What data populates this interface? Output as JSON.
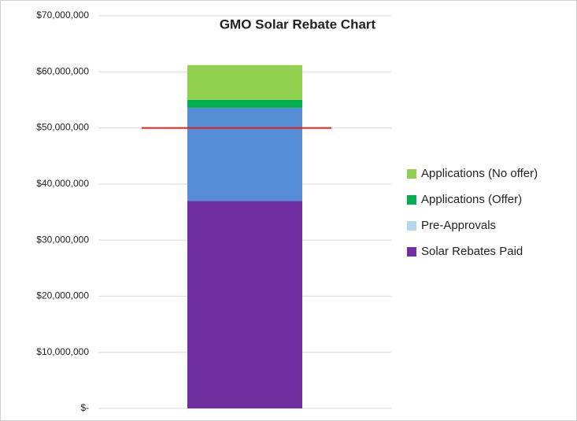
{
  "chart_data": {
    "type": "stacked_bar",
    "title": "GMO Solar Rebate Chart",
    "categories": [
      null
    ],
    "series": [
      {
        "name": "Solar Rebates Paid",
        "color": "#7030a0",
        "values": [
          37000000
        ]
      },
      {
        "name": "Pre-Approvals",
        "color": "#558ed5",
        "legend_color": "#b4d8ec",
        "values": [
          16600000
        ]
      },
      {
        "name": "Applications (Offer)",
        "color": "#00b050",
        "values": [
          1400000
        ]
      },
      {
        "name": "Applications (No offer)",
        "color": "#92d050",
        "values": [
          6200000
        ]
      }
    ],
    "reference_line": {
      "value": 50000000,
      "color": "#e0201b"
    },
    "ylim": [
      0,
      70000000
    ],
    "yticks": [
      {
        "value": 0,
        "label": "$-"
      },
      {
        "value": 10000000,
        "label": "$10,000,000"
      },
      {
        "value": 20000000,
        "label": "$20,000,000"
      },
      {
        "value": 30000000,
        "label": "$30,000,000"
      },
      {
        "value": 40000000,
        "label": "$40,000,000"
      },
      {
        "value": 50000000,
        "label": "$50,000,000"
      },
      {
        "value": 60000000,
        "label": "$60,000,000"
      },
      {
        "value": 70000000,
        "label": "$70,000,000"
      }
    ],
    "grid": true
  }
}
